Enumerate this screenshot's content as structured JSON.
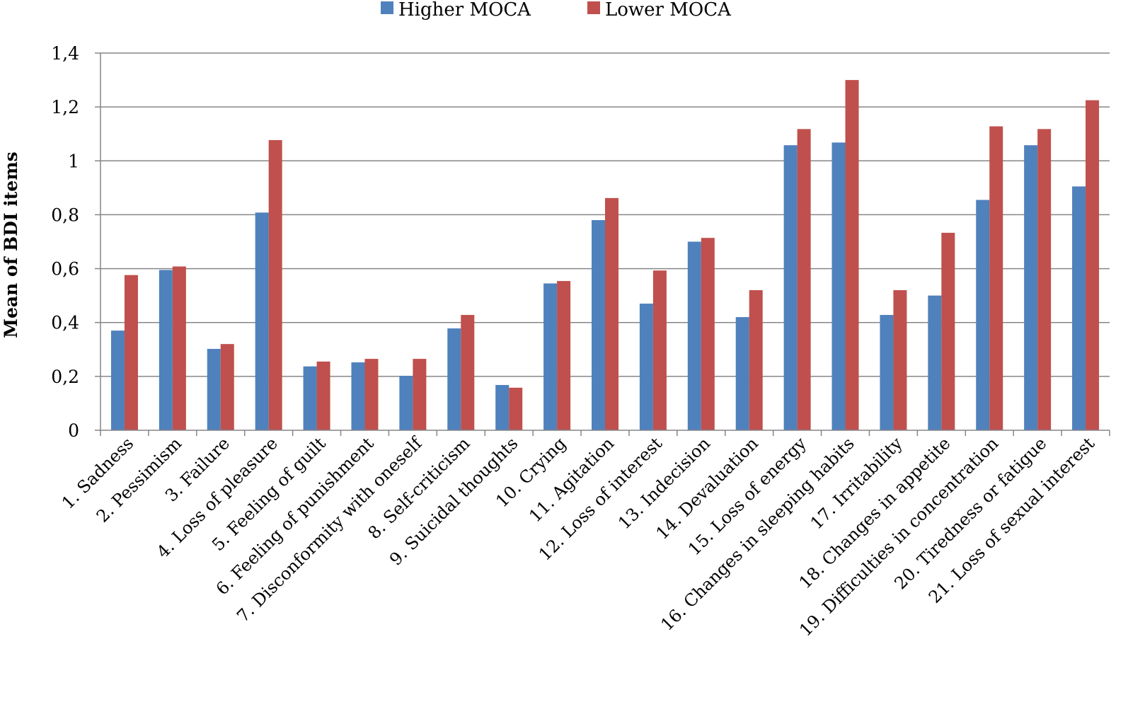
{
  "chart_data": {
    "type": "bar",
    "title": "",
    "xlabel": "",
    "ylabel": "Mean of BDI items",
    "ylim": [
      0,
      1.4
    ],
    "yticks": [
      0,
      0.2,
      0.4,
      0.6,
      0.8,
      1,
      1.2,
      1.4
    ],
    "ytick_labels": [
      "0",
      "0,2",
      "0,4",
      "0,6",
      "0,8",
      "1",
      "1,2",
      "1,4"
    ],
    "grid": true,
    "legend_position": "top",
    "categories": [
      "1. Sadness",
      "2. Pessimism",
      "3. Failure",
      "4. Loss of pleasure",
      "5. Feeling of guilt",
      "6. Feeling of punishment",
      "7. Disconformity with oneself",
      "8. Self-criticism",
      "9. Suicidal thoughts",
      "10. Crying",
      "11. Agitation",
      "12. Loss of interest",
      "13. Indecision",
      "14. Devaluation",
      "15. Loss of energy",
      "16. Changes in sleeping habits",
      "17. Irritability",
      "18. Changes in appetite",
      "19. Difficulties in concentration",
      "20. Tiredness or fatigue",
      "21. Loss of sexual interest"
    ],
    "series": [
      {
        "name": "Higher MOCA",
        "color": "#4f81bd",
        "values": [
          0.37,
          0.595,
          0.302,
          0.808,
          0.237,
          0.252,
          0.202,
          0.378,
          0.168,
          0.545,
          0.78,
          0.47,
          0.7,
          0.42,
          1.058,
          1.068,
          0.428,
          0.5,
          0.855,
          1.058,
          0.905
        ]
      },
      {
        "name": "Lower MOCA",
        "color": "#c0504d",
        "values": [
          0.576,
          0.608,
          0.32,
          1.077,
          0.255,
          0.265,
          0.265,
          0.428,
          0.158,
          0.554,
          0.862,
          0.593,
          0.714,
          0.52,
          1.118,
          1.3,
          0.52,
          0.733,
          1.128,
          1.118,
          1.225
        ]
      }
    ]
  }
}
